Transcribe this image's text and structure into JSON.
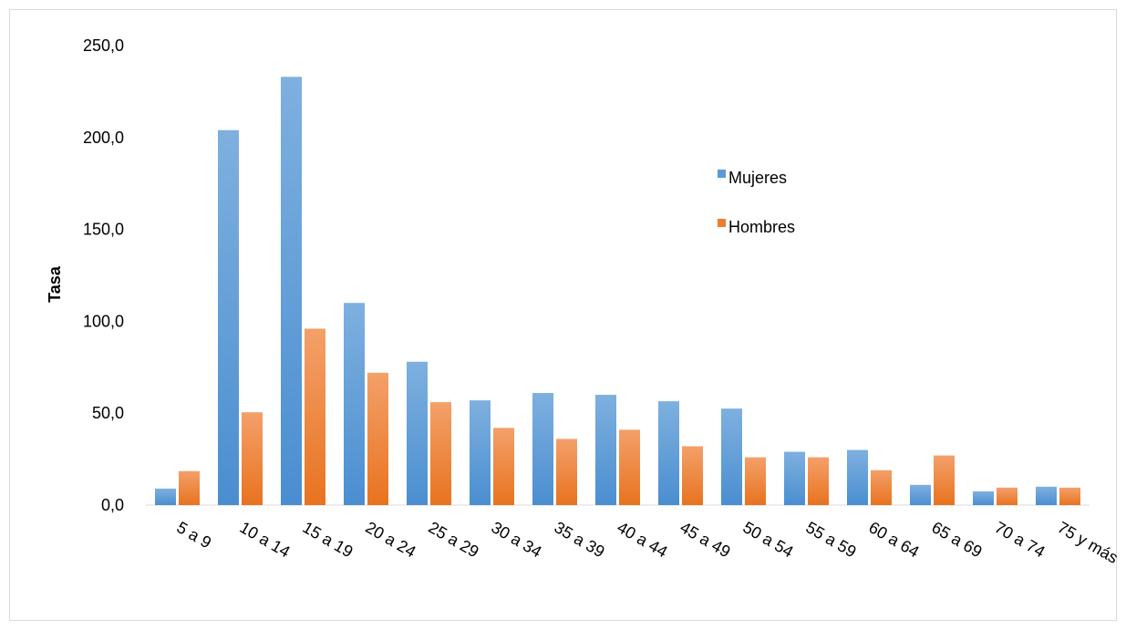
{
  "chart_data": {
    "type": "bar",
    "ylabel": "Tasa",
    "xlabel": "",
    "ylim": [
      0,
      250
    ],
    "yticks": [
      "0,0",
      "50,0",
      "100,0",
      "150,0",
      "200,0",
      "250,0"
    ],
    "grid": false,
    "legend_position": "right",
    "categories": [
      "5 a 9",
      "10 a 14",
      "15 a 19",
      "20 a 24",
      "25 a 29",
      "30 a 34",
      "35 a 39",
      "40 a 44",
      "45 a 49",
      "50 a 54",
      "55 a 59",
      "60 a 64",
      "65 a 69",
      "70 a 74",
      "75 y más"
    ],
    "series": [
      {
        "name": "Mujeres",
        "color": "#5b9bd5",
        "values": [
          9.0,
          204.0,
          233.0,
          110.0,
          78.0,
          57.0,
          61.0,
          60.0,
          56.5,
          52.5,
          29.0,
          30.0,
          11.0,
          7.5,
          10.0
        ]
      },
      {
        "name": "Hombres",
        "color": "#ed7d31",
        "values": [
          18.5,
          50.5,
          96.0,
          72.0,
          56.0,
          42.0,
          36.0,
          41.0,
          32.0,
          26.0,
          26.0,
          19.0,
          27.0,
          9.5,
          9.5
        ]
      }
    ]
  }
}
